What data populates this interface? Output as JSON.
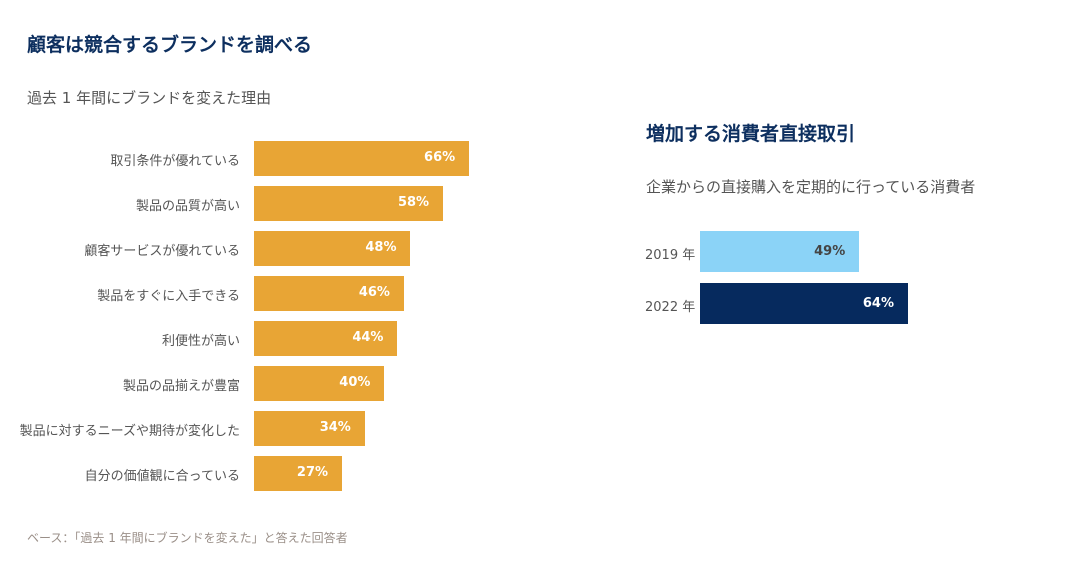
{
  "colors": {
    "brand_bar": "#E8A535",
    "year2019": "#8BD3F7",
    "year2022": "#062A5E",
    "title": "#0D2F5F"
  },
  "chart_data": [
    {
      "type": "bar",
      "orientation": "horizontal",
      "title": "顧客は競合するブランドを調べる",
      "subtitle": "過去 1 年間にブランドを変えた理由",
      "categories": [
        "取引条件が優れている",
        "製品の品質が高い",
        "顧客サービスが優れている",
        "製品をすぐに入手できる",
        "利便性が高い",
        "製品の品揃えが豊富",
        "製品に対するニーズや期待が変化した",
        "自分の価値観に合っている"
      ],
      "values": [
        66,
        58,
        48,
        46,
        44,
        40,
        34,
        27
      ],
      "labels": [
        "66%",
        "58%",
        "48%",
        "46%",
        "44%",
        "40%",
        "34%",
        "27%"
      ],
      "xlim": [
        0,
        100
      ],
      "footnote": "ベース：「過去 1 年間にブランドを変えた」と答えた回答者"
    },
    {
      "type": "bar",
      "orientation": "horizontal",
      "title": "増加する消費者直接取引",
      "subtitle": "企業からの直接購入を定期的に行っている消費者",
      "categories": [
        "2019 年",
        "2022 年"
      ],
      "values": [
        49,
        64
      ],
      "labels": [
        "49%",
        "64%"
      ],
      "xlim": [
        0,
        100
      ]
    }
  ]
}
